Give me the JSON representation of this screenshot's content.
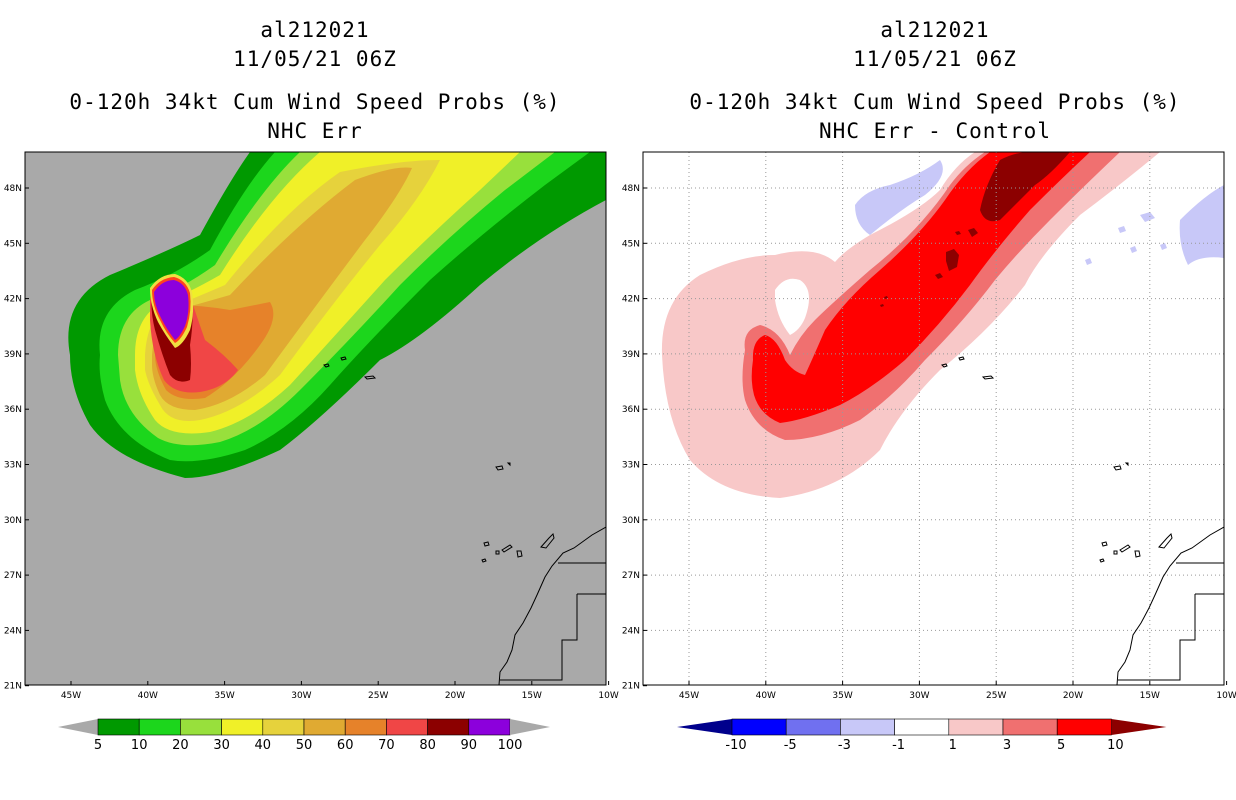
{
  "left_panel": {
    "title_lines": [
      "al212021",
      "11/05/21 06Z",
      "0-120h 34kt Cum Wind Speed Probs (%)",
      "NHC Err"
    ],
    "background_color": "#a9a9a9",
    "colorbar": {
      "labels": [
        "5",
        "10",
        "20",
        "30",
        "40",
        "50",
        "60",
        "70",
        "80",
        "90",
        "100"
      ],
      "colors": [
        "#009900",
        "#1cd61c",
        "#98e03c",
        "#f0f028",
        "#e6d23c",
        "#e0aa32",
        "#e6822a",
        "#f04646",
        "#8c0000",
        "#8c00dc"
      ],
      "arrow_color": "#a9a9a9"
    }
  },
  "right_panel": {
    "title_lines": [
      "al212021",
      "11/05/21 06Z",
      "0-120h 34kt Cum Wind Speed Probs (%)",
      "NHC Err - Control"
    ],
    "background_color": "#ffffff",
    "colorbar": {
      "labels": [
        "-10",
        "-5",
        "-3",
        "-1",
        "1",
        "3",
        "5",
        "10"
      ],
      "colors": [
        "#0000cc",
        "#0000ff",
        "#7070f0",
        "#c8c8f8",
        "#ffffff",
        "#f8c8c8",
        "#f07070",
        "#ff0000"
      ],
      "low_arrow_color": "#00008c",
      "high_arrow_color": "#8c0000"
    }
  },
  "axes": {
    "lat_labels": [
      "48N",
      "45N",
      "42N",
      "39N",
      "36N",
      "33N",
      "30N",
      "27N",
      "24N",
      "21N"
    ],
    "lon_labels": [
      "45W",
      "40W",
      "35W",
      "30W",
      "25W",
      "20W",
      "15W",
      "10W"
    ]
  },
  "colors": {
    "land_outline": "#000000",
    "grid": "#999999"
  }
}
